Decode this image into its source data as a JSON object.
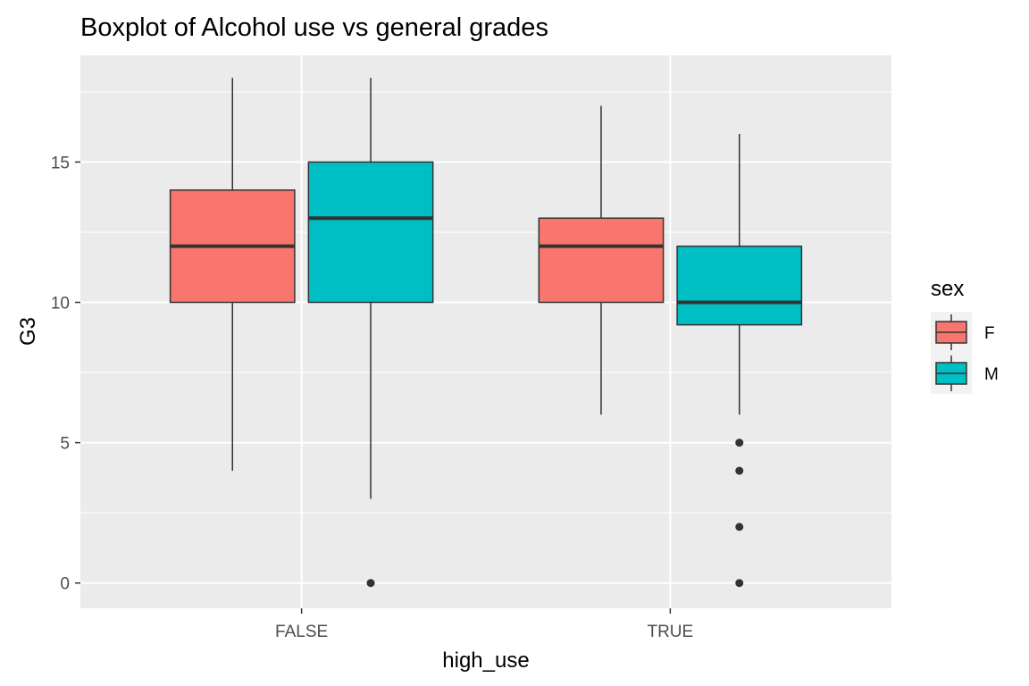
{
  "chart_data": {
    "type": "boxplot",
    "title": "Boxplot of Alcohol use vs general grades",
    "xlabel": "high_use",
    "ylabel": "G3",
    "categories": [
      "FALSE",
      "TRUE"
    ],
    "ylim": [
      -0.9,
      18.8
    ],
    "yticks": [
      0,
      5,
      10,
      15
    ],
    "grid": true,
    "legend": {
      "title": "sex",
      "placement": "right"
    },
    "series": [
      {
        "name": "F",
        "color": "#F8766D",
        "boxes": [
          {
            "category": "FALSE",
            "whisker_low": 4,
            "q1": 10,
            "median": 12,
            "q3": 14,
            "whisker_high": 18,
            "outliers": []
          },
          {
            "category": "TRUE",
            "whisker_low": 6,
            "q1": 10,
            "median": 12,
            "q3": 13,
            "whisker_high": 17,
            "outliers": []
          }
        ]
      },
      {
        "name": "M",
        "color": "#00BFC4",
        "boxes": [
          {
            "category": "FALSE",
            "whisker_low": 3,
            "q1": 10,
            "median": 13,
            "q3": 15,
            "whisker_high": 18,
            "outliers": [
              0
            ]
          },
          {
            "category": "TRUE",
            "whisker_low": 6,
            "q1": 9.2,
            "median": 10,
            "q3": 12,
            "whisker_high": 16,
            "outliers": [
              5,
              4,
              2,
              0
            ]
          }
        ]
      }
    ]
  }
}
